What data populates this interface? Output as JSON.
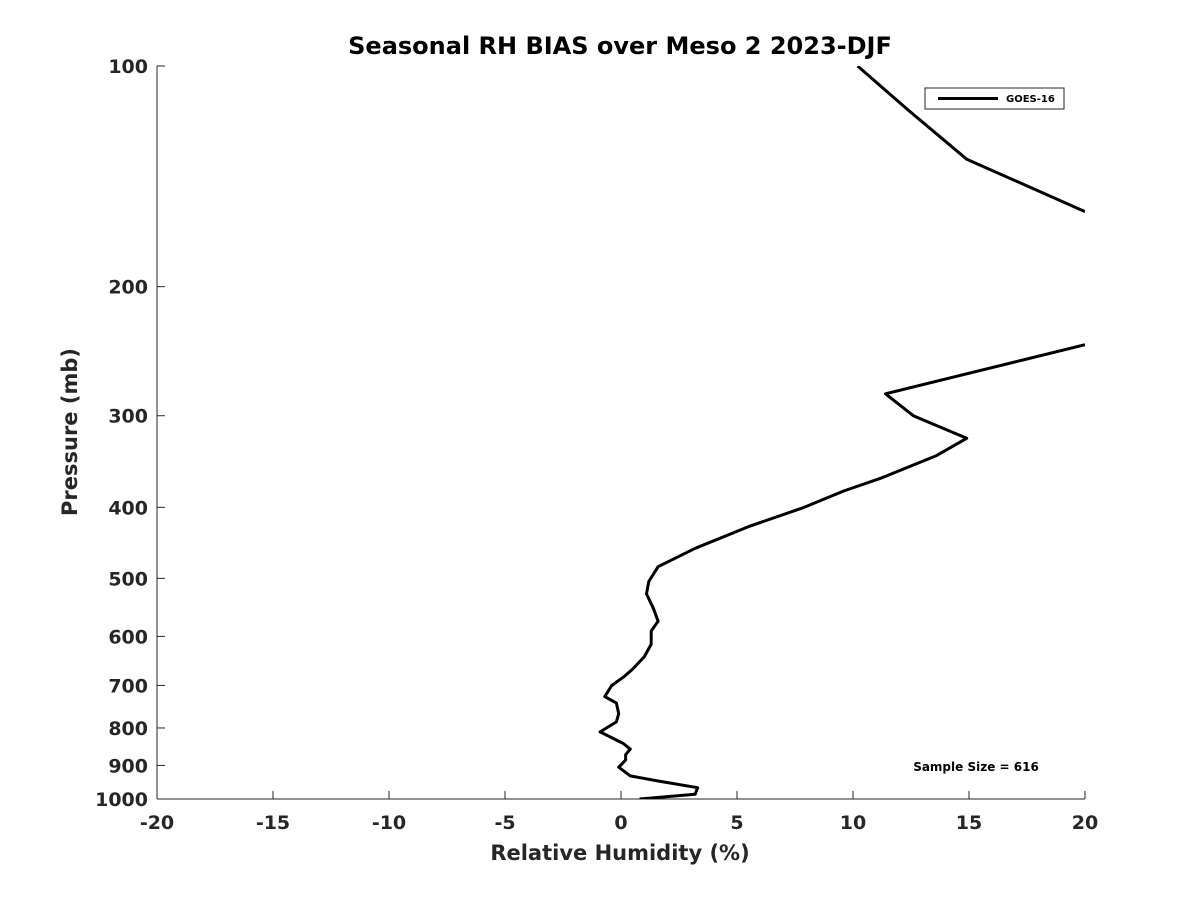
{
  "chart_data": {
    "type": "line",
    "title": "Seasonal RH BIAS over Meso 2  2023-DJF",
    "xlabel": "Relative Humidity (%)",
    "ylabel": "Pressure (mb)",
    "xlim": [
      -20,
      20
    ],
    "ylim": [
      100,
      1000
    ],
    "y_scale": "log",
    "y_reversed": true,
    "x_ticks": [
      -20,
      -15,
      -10,
      -5,
      0,
      5,
      10,
      15,
      20
    ],
    "x_tick_labels": [
      "-20",
      "-15",
      "-10",
      "-5",
      "0",
      "5",
      "10",
      "15",
      "20"
    ],
    "y_ticks": [
      100,
      200,
      300,
      400,
      500,
      600,
      700,
      800,
      900,
      1000
    ],
    "y_tick_labels": [
      "100",
      "200",
      "300",
      "400",
      "500",
      "600",
      "700",
      "800",
      "900",
      "1000"
    ],
    "grid": false,
    "legend_position": "top-right",
    "annotation": "Sample Size = 616",
    "line_color": "#000000",
    "series": [
      {
        "name": "GOES-16",
        "segments": [
          [
            {
              "x": 10.2,
              "y": 100
            },
            {
              "x": 12.4,
              "y": 115
            },
            {
              "x": 14.9,
              "y": 134
            },
            {
              "x": 20.0,
              "y": 158
            }
          ],
          [
            {
              "x": 20.0,
              "y": 240
            },
            {
              "x": 11.4,
              "y": 280
            },
            {
              "x": 12.6,
              "y": 300
            },
            {
              "x": 14.9,
              "y": 322
            },
            {
              "x": 13.6,
              "y": 340
            },
            {
              "x": 11.2,
              "y": 365
            },
            {
              "x": 9.6,
              "y": 380
            },
            {
              "x": 7.9,
              "y": 400
            },
            {
              "x": 5.5,
              "y": 425
            },
            {
              "x": 3.2,
              "y": 455
            },
            {
              "x": 1.6,
              "y": 482
            },
            {
              "x": 1.2,
              "y": 505
            },
            {
              "x": 1.1,
              "y": 525
            },
            {
              "x": 1.4,
              "y": 550
            },
            {
              "x": 1.6,
              "y": 572
            },
            {
              "x": 1.3,
              "y": 590
            },
            {
              "x": 1.3,
              "y": 615
            },
            {
              "x": 1.0,
              "y": 640
            },
            {
              "x": 0.5,
              "y": 665
            },
            {
              "x": 0.1,
              "y": 682
            },
            {
              "x": -0.4,
              "y": 700
            },
            {
              "x": -0.7,
              "y": 725
            },
            {
              "x": -0.2,
              "y": 740
            },
            {
              "x": -0.1,
              "y": 765
            },
            {
              "x": -0.2,
              "y": 785
            },
            {
              "x": -0.9,
              "y": 810
            },
            {
              "x": 0.1,
              "y": 840
            },
            {
              "x": 0.4,
              "y": 855
            },
            {
              "x": 0.2,
              "y": 870
            },
            {
              "x": 0.2,
              "y": 885
            },
            {
              "x": -0.1,
              "y": 905
            },
            {
              "x": 0.4,
              "y": 930
            },
            {
              "x": 1.6,
              "y": 945
            },
            {
              "x": 3.3,
              "y": 965
            },
            {
              "x": 3.2,
              "y": 985
            },
            {
              "x": 0.8,
              "y": 1000
            }
          ]
        ]
      }
    ]
  }
}
